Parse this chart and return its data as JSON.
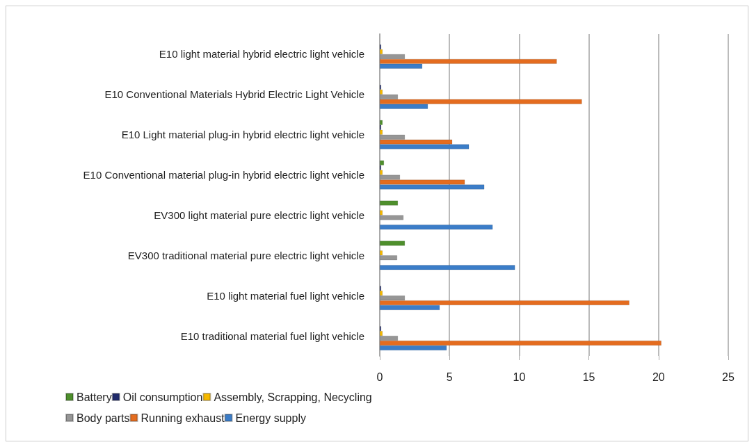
{
  "chart_data": {
    "type": "bar",
    "orientation": "horizontal",
    "categories": [
      "E10 light material hybrid electric light vehicle",
      "E10 Conventional Materials Hybrid Electric Light Vehicle",
      "E10 Light material plug-in hybrid electric light vehicle",
      "E10 Conventional material plug-in hybrid electric light vehicle",
      "EV300 light material pure electric light vehicle",
      "EV300 traditional material pure electric light vehicle",
      "E10 light material fuel light vehicle",
      "E10 traditional material fuel light vehicle"
    ],
    "series": [
      {
        "name": "Battery",
        "color": "#4e8f2c",
        "values": [
          null,
          null,
          0.2,
          0.3,
          1.3,
          1.8,
          null,
          null
        ]
      },
      {
        "name": "Oil consumption",
        "color": "#1f2a6b",
        "values": [
          0.1,
          0.1,
          0.1,
          0.1,
          null,
          null,
          0.1,
          0.1
        ]
      },
      {
        "name": "Assembly, Scrapping, Necycling",
        "color": "#f5b800",
        "values": [
          0.2,
          0.2,
          0.2,
          0.2,
          0.2,
          0.2,
          0.2,
          0.2
        ]
      },
      {
        "name": "Body parts",
        "color": "#969696",
        "values": [
          1.8,
          1.3,
          1.8,
          1.45,
          1.7,
          1.25,
          1.8,
          1.3
        ]
      },
      {
        "name": "Running exhaust",
        "color": "#e46c1f",
        "values": [
          12.7,
          14.5,
          5.2,
          6.1,
          null,
          null,
          17.9,
          20.2
        ]
      },
      {
        "name": "Energy supply",
        "color": "#3b7dc8",
        "values": [
          3.05,
          3.45,
          6.4,
          7.5,
          8.1,
          9.7,
          4.3,
          4.8
        ]
      }
    ],
    "xlim": [
      0,
      25
    ],
    "xticks": [
      0,
      5,
      10,
      15,
      20,
      25
    ],
    "grid": "x",
    "legend": "bottom"
  }
}
